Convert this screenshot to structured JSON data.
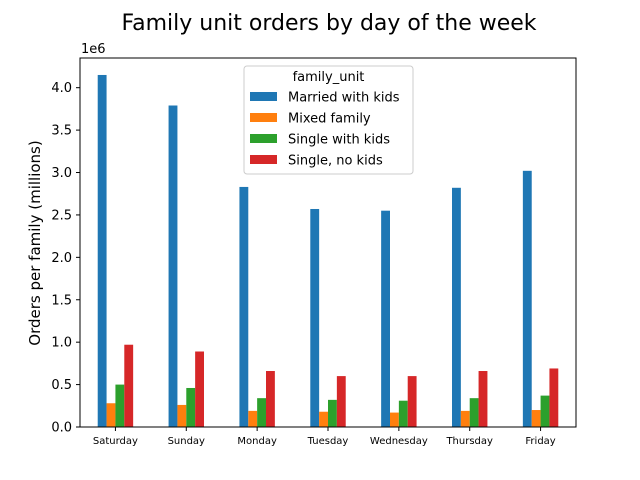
{
  "chart_data": {
    "type": "bar",
    "title": "Family unit orders by day of the week",
    "xlabel": "",
    "ylabel": "Orders per family (millions)",
    "y_offset_label": "1e6",
    "ylim": [
      0,
      4.35
    ],
    "yticks": [
      0.0,
      0.5,
      1.0,
      1.5,
      2.0,
      2.5,
      3.0,
      3.5,
      4.0
    ],
    "ytick_labels": [
      "0.0",
      "0.5",
      "1.0",
      "1.5",
      "2.0",
      "2.5",
      "3.0",
      "3.5",
      "4.0"
    ],
    "categories": [
      "Saturday",
      "Sunday",
      "Monday",
      "Tuesday",
      "Wednesday",
      "Thursday",
      "Friday"
    ],
    "legend_title": "family_unit",
    "legend_position": "top-center",
    "grid": false,
    "series": [
      {
        "name": "Married with kids",
        "color": "#1f77b4",
        "values": [
          4.15,
          3.79,
          2.83,
          2.57,
          2.55,
          2.82,
          3.02
        ]
      },
      {
        "name": "Mixed family",
        "color": "#ff7f0e",
        "values": [
          0.28,
          0.26,
          0.19,
          0.18,
          0.17,
          0.19,
          0.2
        ]
      },
      {
        "name": "Single with kids",
        "color": "#2ca02c",
        "values": [
          0.5,
          0.46,
          0.34,
          0.32,
          0.31,
          0.34,
          0.37
        ]
      },
      {
        "name": "Single, no kids",
        "color": "#d62728",
        "values": [
          0.97,
          0.89,
          0.66,
          0.6,
          0.6,
          0.66,
          0.69
        ]
      }
    ]
  }
}
